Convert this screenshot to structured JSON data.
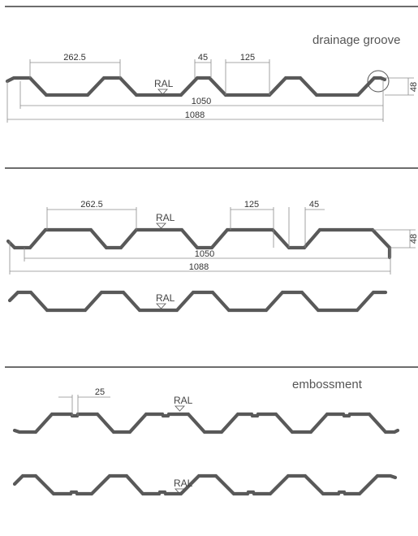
{
  "diagram": {
    "caption_1": "drainage groove",
    "caption_3": "embossment",
    "ral": "RAL",
    "dimensions": {
      "d262": "262.5",
      "d45": "45",
      "d125": "125",
      "d48": "48",
      "d1050": "1050",
      "d1088": "1088",
      "d25": "25"
    }
  }
}
